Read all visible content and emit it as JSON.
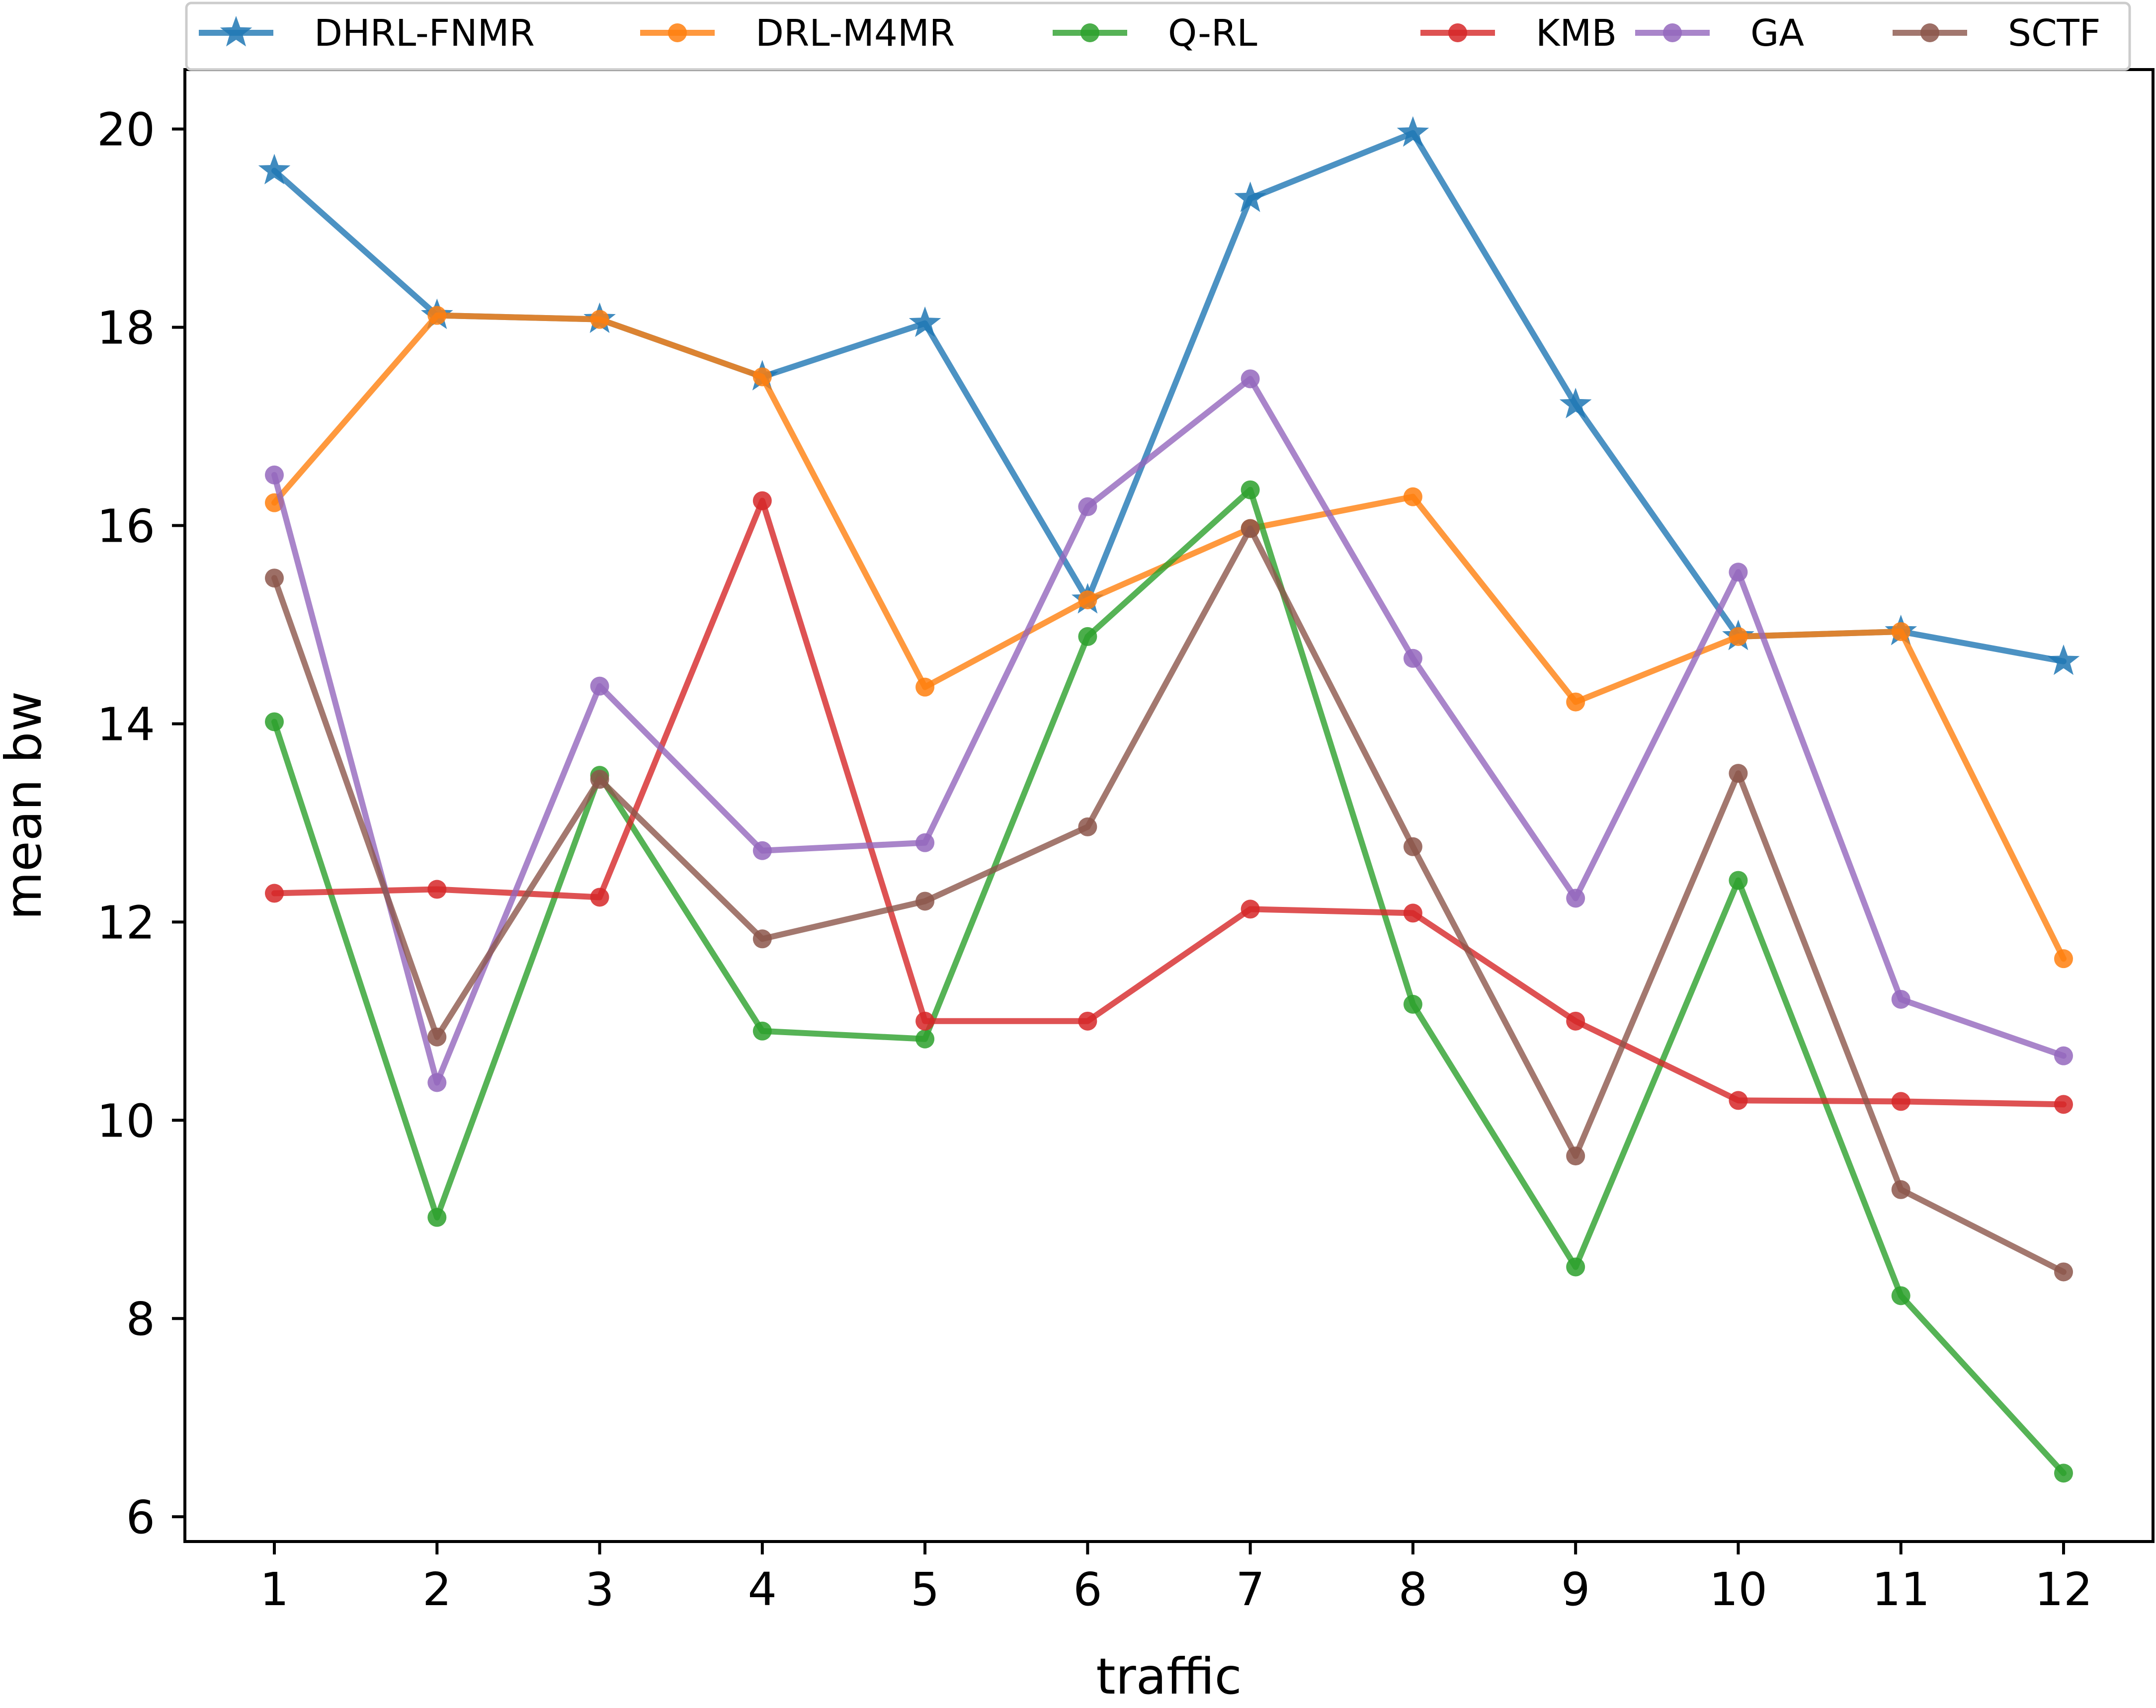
{
  "chart_data": {
    "type": "line",
    "xlabel": "traffic",
    "ylabel": "mean bw",
    "x": [
      1,
      2,
      3,
      4,
      5,
      6,
      7,
      8,
      9,
      10,
      11,
      12
    ],
    "x_ticks": [
      "1",
      "2",
      "3",
      "4",
      "5",
      "6",
      "7",
      "8",
      "9",
      "10",
      "11",
      "12"
    ],
    "y_ticks": [
      "6",
      "8",
      "10",
      "12",
      "14",
      "16",
      "18",
      "20"
    ],
    "ylim": [
      5.75,
      20.6
    ],
    "xlim": [
      0.45,
      12.55
    ],
    "legend_position": "top, above plot",
    "grid": false,
    "series": [
      {
        "name": "DHRL-FNMR",
        "color": "#1f77b4",
        "marker": "star",
        "values": [
          19.58,
          18.12,
          18.08,
          17.5,
          18.04,
          15.25,
          19.3,
          19.96,
          17.22,
          14.88,
          14.93,
          14.63
        ]
      },
      {
        "name": "DRL-M4MR",
        "color": "#ff7f0e",
        "marker": "circle",
        "values": [
          16.23,
          18.12,
          18.08,
          17.5,
          14.37,
          15.25,
          15.97,
          16.29,
          14.22,
          14.88,
          14.93,
          11.63
        ]
      },
      {
        "name": "Q-RL",
        "color": "#2ca02c",
        "marker": "circle",
        "values": [
          14.02,
          9.02,
          13.48,
          10.9,
          10.82,
          14.88,
          16.36,
          11.17,
          8.52,
          12.42,
          8.23,
          6.44
        ]
      },
      {
        "name": "KMB",
        "color": "#d62728",
        "marker": "circle",
        "values": [
          12.29,
          12.33,
          12.25,
          16.25,
          11.0,
          11.0,
          12.13,
          12.09,
          11.0,
          10.2,
          10.19,
          10.16
        ]
      },
      {
        "name": "GA",
        "color": "#9467bd",
        "marker": "circle",
        "values": [
          16.51,
          10.38,
          14.38,
          12.72,
          12.8,
          16.19,
          17.48,
          14.66,
          12.24,
          15.53,
          11.22,
          10.65
        ]
      },
      {
        "name": "SCTF",
        "color": "#8c564b",
        "marker": "circle",
        "values": [
          15.47,
          10.84,
          13.44,
          11.83,
          12.21,
          12.96,
          15.97,
          12.76,
          9.64,
          13.5,
          9.3,
          8.47
        ]
      }
    ]
  }
}
